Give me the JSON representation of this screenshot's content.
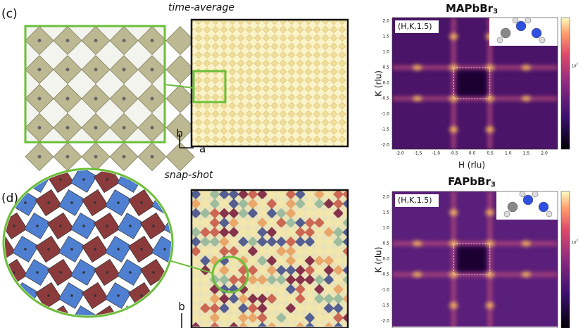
{
  "panel_c": {
    "label": "(c)",
    "map_title": "time-average",
    "axis_b": "b",
    "axis_a": "a"
  },
  "panel_d": {
    "label": "(d)",
    "map_title": "snap-shot",
    "axis_b": "b"
  },
  "heatmaps": [
    {
      "compound": "MAPbBr",
      "subscript": "3",
      "plane": "(H,K,1.5)",
      "ylabel": "K (rlu)",
      "xlabel": "H (rlu)",
      "yticks": [
        "2.0",
        "1.5",
        "1.0",
        "0.5",
        "0.0",
        "-0.5",
        "-1.0",
        "-1.5",
        "-2.0"
      ],
      "xticks": [
        "-2.0",
        "-1.5",
        "-1.0",
        "-0.5",
        "0.0",
        "0.5",
        "1.0",
        "1.5",
        "2.0"
      ],
      "colorbar_base": "10",
      "colorbar_exp": "2"
    },
    {
      "compound": "FAPbBr",
      "subscript": "3",
      "plane": "(H,K,1.5)",
      "ylabel": "K (rlu)",
      "yticks": [
        "2.0",
        "1.5",
        "1.0",
        "0.5",
        "0.0",
        "-0.5",
        "-1.0",
        "-1.5",
        "-2.0"
      ],
      "colorbar_base": "10",
      "colorbar_exp": "2"
    }
  ]
}
